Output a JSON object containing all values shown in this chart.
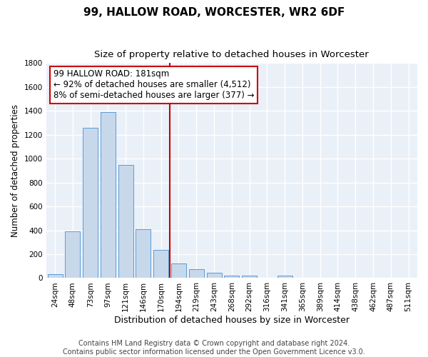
{
  "title": "99, HALLOW ROAD, WORCESTER, WR2 6DF",
  "subtitle": "Size of property relative to detached houses in Worcester",
  "xlabel": "Distribution of detached houses by size in Worcester",
  "ylabel": "Number of detached properties",
  "footer_line1": "Contains HM Land Registry data © Crown copyright and database right 2024.",
  "footer_line2": "Contains public sector information licensed under the Open Government Licence v3.0.",
  "bar_labels": [
    "24sqm",
    "48sqm",
    "73sqm",
    "97sqm",
    "121sqm",
    "146sqm",
    "170sqm",
    "194sqm",
    "219sqm",
    "243sqm",
    "268sqm",
    "292sqm",
    "316sqm",
    "341sqm",
    "365sqm",
    "389sqm",
    "414sqm",
    "438sqm",
    "462sqm",
    "487sqm",
    "511sqm"
  ],
  "bar_values": [
    30,
    390,
    1260,
    1390,
    950,
    410,
    235,
    120,
    75,
    45,
    20,
    20,
    0,
    20,
    0,
    0,
    0,
    0,
    0,
    0,
    0
  ],
  "bar_color": "#c8d8eb",
  "bar_edge_color": "#5b9bd5",
  "red_line_x": 6.5,
  "red_line_color": "#cc0000",
  "annotation_line1": "99 HALLOW ROAD: 181sqm",
  "annotation_line2": "← 92% of detached houses are smaller (4,512)",
  "annotation_line3": "8% of semi-detached houses are larger (377) →",
  "annotation_box_color": "white",
  "annotation_box_edge_color": "#cc0000",
  "ylim": [
    0,
    1800
  ],
  "yticks": [
    0,
    200,
    400,
    600,
    800,
    1000,
    1200,
    1400,
    1600,
    1800
  ],
  "background_color": "#eaf0f8",
  "grid_color": "white",
  "title_fontsize": 11,
  "subtitle_fontsize": 9.5,
  "annotation_fontsize": 8.5,
  "xlabel_fontsize": 9,
  "ylabel_fontsize": 8.5,
  "tick_fontsize": 7.5,
  "footer_fontsize": 7
}
